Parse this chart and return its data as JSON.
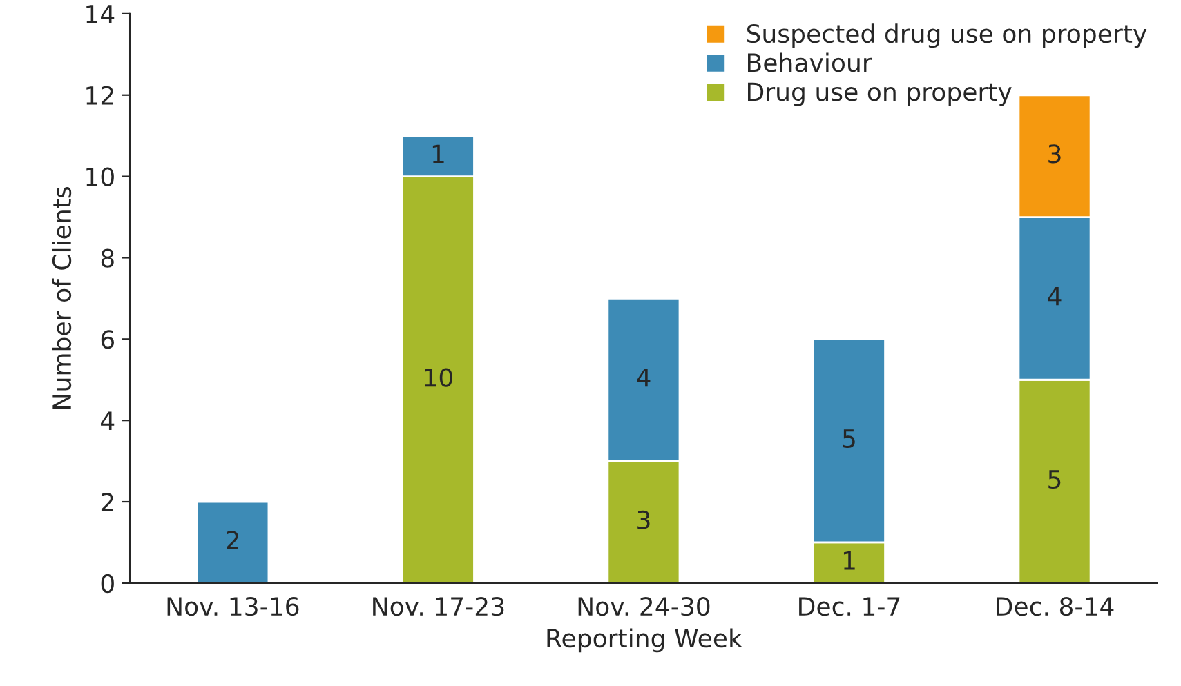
{
  "chart_data": {
    "type": "bar",
    "stacked": true,
    "xlabel": "Reporting Week",
    "ylabel": "Number of Clients",
    "categories": [
      "Nov. 13-16",
      "Nov. 17-23",
      "Nov. 24-30",
      "Dec. 1-7",
      "Dec. 8-14"
    ],
    "series": [
      {
        "name": "Drug use on property",
        "color": "#a7b92b",
        "values": [
          null,
          10,
          3,
          1,
          5
        ]
      },
      {
        "name": "Behaviour",
        "color": "#3d8bb6",
        "values": [
          2,
          1,
          4,
          5,
          4
        ]
      },
      {
        "name": "Suspected drug use on property",
        "color": "#f5990f",
        "values": [
          null,
          null,
          null,
          null,
          3
        ]
      }
    ],
    "ylim": [
      0,
      14
    ],
    "yticks": [
      0,
      2,
      4,
      6,
      8,
      10,
      12,
      14
    ],
    "grid": false,
    "legend": "top right",
    "data_labels": true
  }
}
